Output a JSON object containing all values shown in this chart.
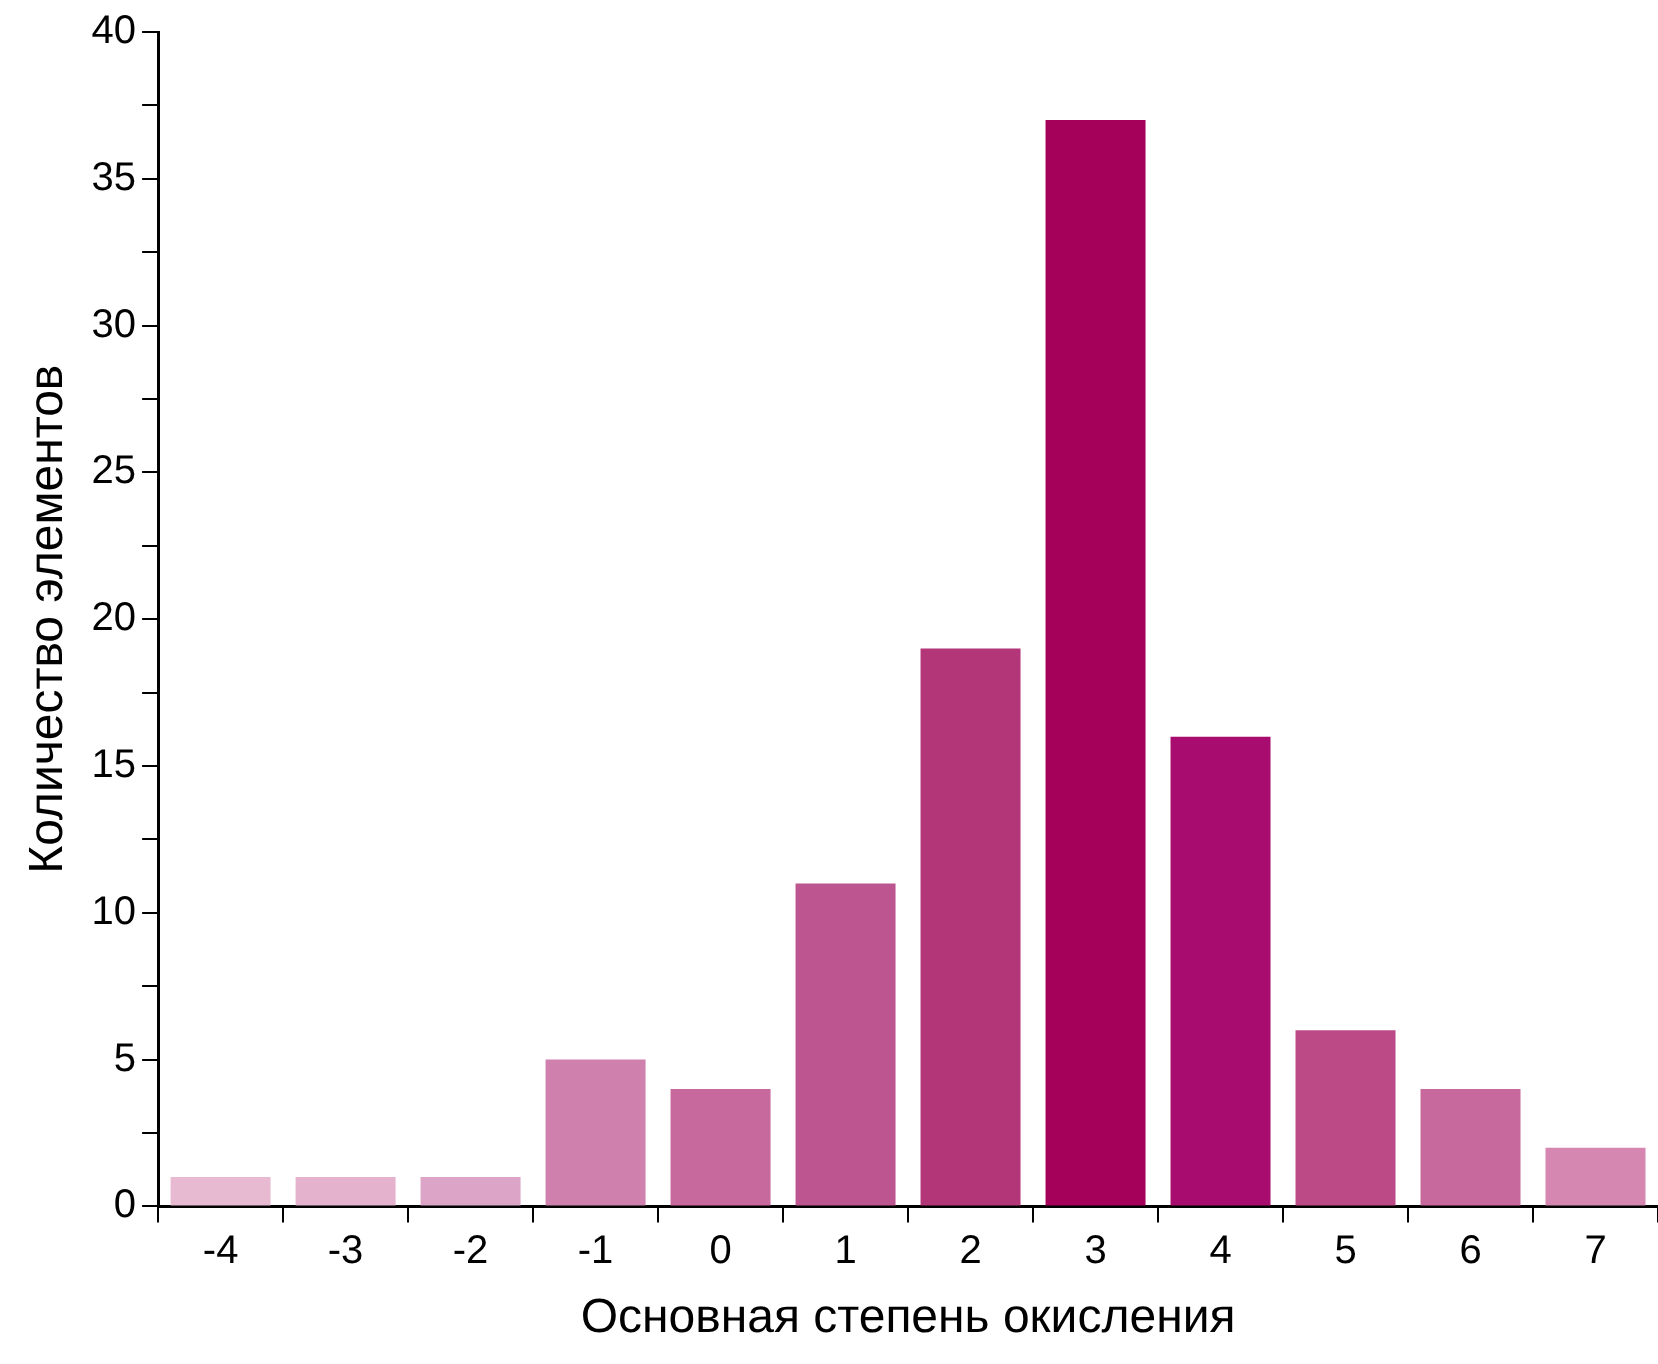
{
  "chart_data": {
    "type": "bar",
    "xlabel": "Основная степень окисления",
    "ylabel": "Количество элементов",
    "categories": [
      "-4",
      "-3",
      "-2",
      "-1",
      "0",
      "1",
      "2",
      "3",
      "4",
      "5",
      "6",
      "7"
    ],
    "values": [
      1,
      1,
      1,
      5,
      4,
      11,
      19,
      37,
      16,
      6,
      4,
      2
    ],
    "colors": [
      "#e8bad2",
      "#e4b2cd",
      "#dca4c6",
      "#cf80ad",
      "#c8699d",
      "#bd5590",
      "#b33679",
      "#a5005a",
      "#a80c6e",
      "#bc4a86",
      "#c8699d",
      "#d586b1"
    ],
    "ylim": [
      0,
      40
    ],
    "yticks": [
      0,
      {
        "value": 2.5,
        "label": null
      },
      5,
      {
        "value": 7.5,
        "label": null
      },
      10,
      {
        "value": 12.5,
        "label": null
      },
      15,
      {
        "value": 17.5,
        "label": null
      },
      20,
      {
        "value": 22.5,
        "label": null
      },
      25,
      {
        "value": 27.5,
        "label": null
      },
      30,
      {
        "value": 32.5,
        "label": null
      },
      35,
      {
        "value": 37.5,
        "label": null
      },
      40
    ],
    "grid": false,
    "legend": false
  }
}
